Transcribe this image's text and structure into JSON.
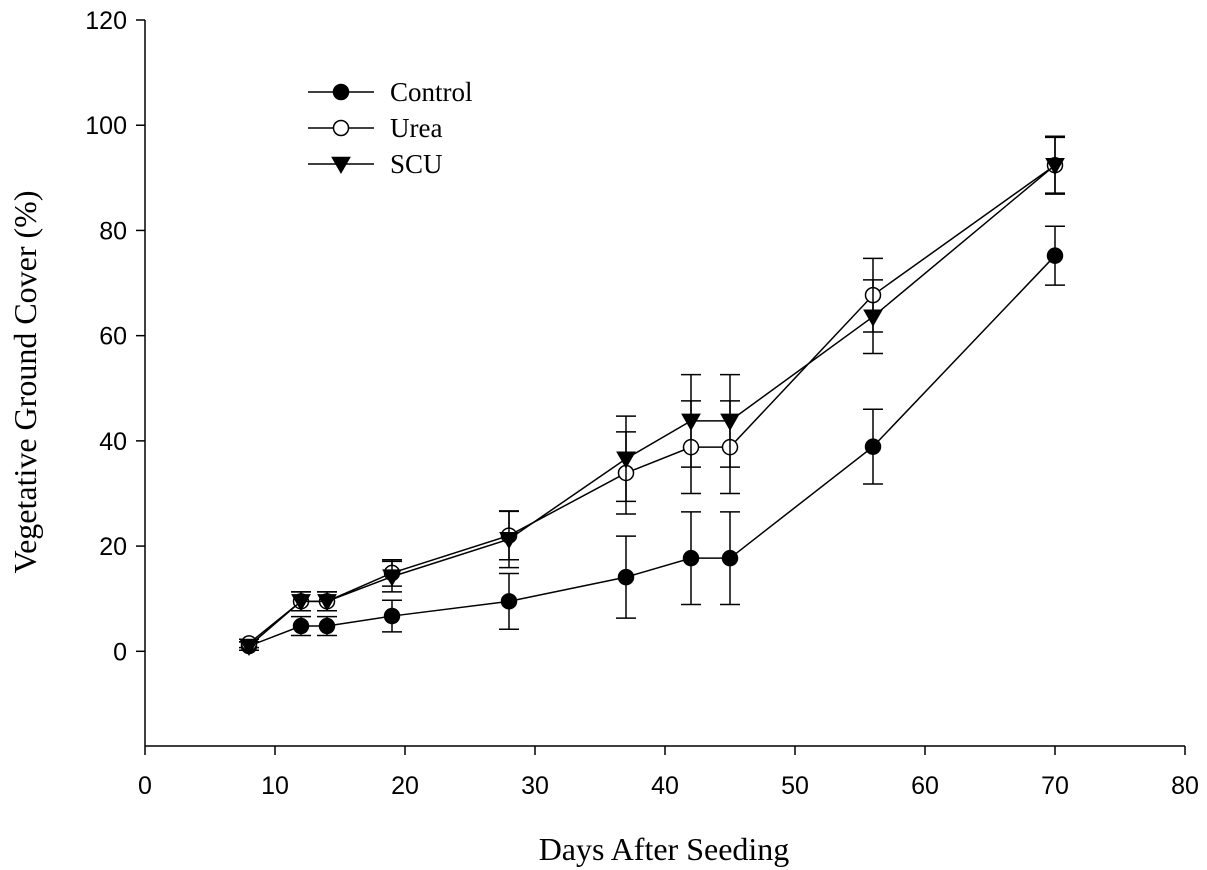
{
  "chart_data": {
    "type": "line",
    "title": "",
    "xlabel": "Days After Seeding",
    "ylabel": "Vegetative Ground Cover (%)",
    "xlim": [
      0,
      80
    ],
    "ylim": [
      -18,
      120
    ],
    "xticks": [
      0,
      10,
      20,
      30,
      40,
      50,
      60,
      70,
      80
    ],
    "yticks": [
      0,
      20,
      40,
      60,
      80,
      100,
      120
    ],
    "grid": false,
    "legend_position": "top-left",
    "x": [
      8,
      12,
      14,
      19,
      28,
      37,
      42,
      45,
      56,
      70
    ],
    "series": [
      {
        "name": "Control",
        "marker": "filled-circle",
        "values": [
          1,
          4.8,
          4.8,
          6.7,
          9.5,
          14.1,
          17.7,
          17.7,
          38.9,
          75.2
        ],
        "errors": [
          0.8,
          1.8,
          1.8,
          3,
          5.3,
          7.8,
          8.8,
          8.8,
          7.1,
          5.6
        ]
      },
      {
        "name": "Urea",
        "marker": "open-circle",
        "values": [
          1.5,
          9.5,
          9.5,
          14.9,
          22,
          33.9,
          38.8,
          38.8,
          67.7,
          92.4
        ],
        "errors": [
          0.8,
          1.8,
          1.8,
          2.5,
          4.6,
          7.8,
          8.8,
          8.8,
          7,
          5.5
        ]
      },
      {
        "name": "SCU",
        "marker": "filled-triangle-down",
        "values": [
          1,
          9.5,
          9.5,
          14.2,
          21.3,
          36.6,
          43.8,
          43.8,
          63.6,
          92.4
        ],
        "errors": [
          0.8,
          1.8,
          1.8,
          2.9,
          5.4,
          8.1,
          8.8,
          8.8,
          7,
          5.3
        ]
      }
    ]
  }
}
